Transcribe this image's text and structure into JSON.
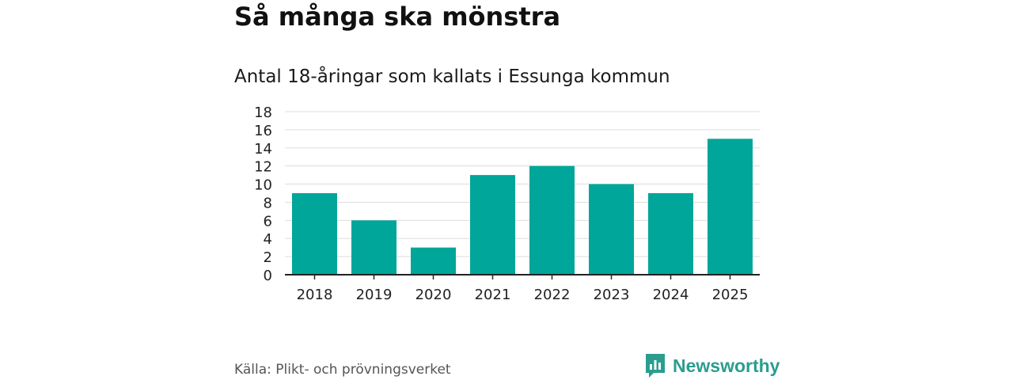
{
  "header": {
    "title": "Så många ska mönstra",
    "subtitle": "Antal 18-åringar som kallats i Essunga kommun"
  },
  "footer": {
    "source": "Källa: Plikt- och prövningsverket",
    "brand": "Newsworthy"
  },
  "colors": {
    "bar": "#00a69a",
    "grid": "#dddddd",
    "axis": "#222222",
    "brand": "#2a9d8f"
  },
  "chart_data": {
    "type": "bar",
    "title": "Så många ska mönstra",
    "subtitle": "Antal 18-åringar som kallats i Essunga kommun",
    "categories": [
      "2018",
      "2019",
      "2020",
      "2021",
      "2022",
      "2023",
      "2024",
      "2025"
    ],
    "values": [
      9,
      6,
      3,
      11,
      12,
      10,
      9,
      15
    ],
    "yticks": [
      0,
      2,
      4,
      6,
      8,
      10,
      12,
      14,
      16,
      18
    ],
    "ylim": [
      0,
      18
    ],
    "xlabel": "",
    "ylabel": "",
    "grid": true,
    "legend": "none"
  }
}
